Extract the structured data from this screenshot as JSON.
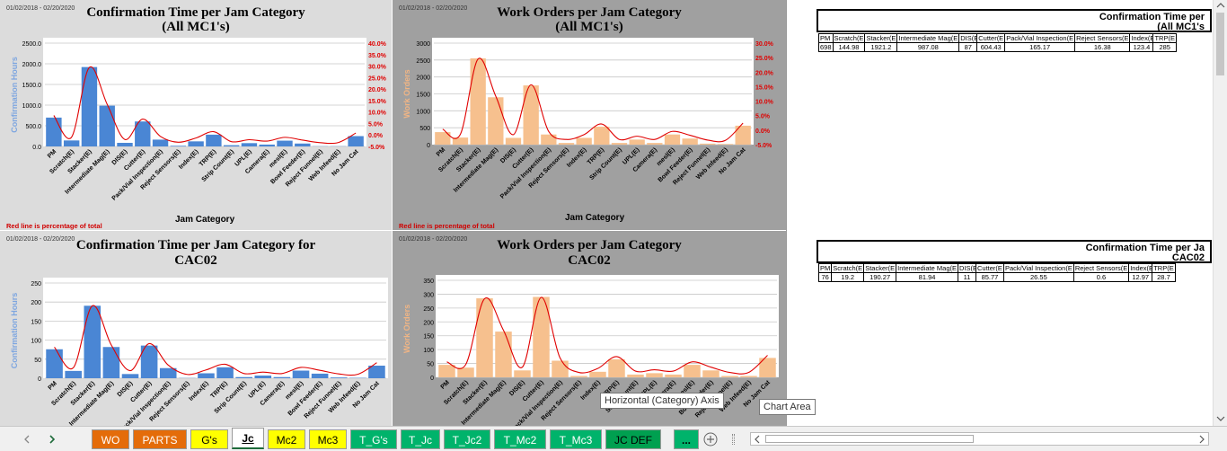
{
  "date_range": "01/02/2018 - 02/20/2020",
  "panel1": {
    "title_line1": "Confirmation Time per Jam Category",
    "title_line2": "(All MC1's)"
  },
  "panel2": {
    "title_line1": "Work Orders per Jam Category",
    "title_line2": "(All MC1's)"
  },
  "panel3": {
    "title_line1": "Confirmation Time per Jam Category for",
    "title_line2": "CAC02"
  },
  "panel4": {
    "title_line1": "Work Orders per Jam Category",
    "title_line2": "CAC02"
  },
  "red_note": "Red line is percentage of total",
  "x_axis_title": "Jam Category",
  "chart_data": [
    {
      "type": "bar",
      "title": "Confirmation Time per Jam Category (All MC1's)",
      "xlabel": "Jam Category",
      "ylabel": "Confirmation Hours",
      "ylim": [
        0,
        2500
      ],
      "y_ticks": [
        "0.0",
        "500.0",
        "1000.0",
        "1500.0",
        "2000.0",
        "2500.0"
      ],
      "y2lim": [
        -5,
        40
      ],
      "y2_ticks": [
        "-5.0%",
        "0.0%",
        "5.0%",
        "10.0%",
        "15.0%",
        "20.0%",
        "25.0%",
        "30.0%",
        "35.0%",
        "40.0%"
      ],
      "categories": [
        "PM",
        "Scratch(E)",
        "Stacker(E)",
        "Intermediate Mag(E)",
        "DIS(E)",
        "Cutter(E)",
        "Pack/Vial Inspection(E)",
        "Reject Sensors(E)",
        "Index(E)",
        "TRP(E)",
        "Strip Count(E)",
        "UPL(E)",
        "Camera(E)",
        "mesl(E)",
        "Bowl Feeder(E)",
        "Reject Funnel(E)",
        "Web Infeed(E)",
        "No Jam Cat"
      ],
      "values": [
        698,
        145,
        1921,
        987,
        87,
        604,
        165,
        16,
        123,
        285,
        30,
        80,
        45,
        140,
        70,
        5,
        5,
        250
      ],
      "bar_color": "#4a86d4",
      "line_color": "#e00000",
      "grid": true
    },
    {
      "type": "bar",
      "title": "Work Orders per Jam Category (All MC1's)",
      "xlabel": "Jam Category",
      "ylabel": "Work Orders",
      "ylim": [
        0,
        3000
      ],
      "y_ticks": [
        "0",
        "500",
        "1000",
        "1500",
        "2000",
        "2500",
        "3000"
      ],
      "y2lim": [
        -5,
        30
      ],
      "y2_ticks": [
        "-5.0%",
        "0.0%",
        "5.0%",
        "10.0%",
        "15.0%",
        "20.0%",
        "25.0%",
        "30.0%"
      ],
      "categories": [
        "PM",
        "Scratch(E)",
        "Stacker(E)",
        "Intermediate Mag(E)",
        "DIS(E)",
        "Cutter(E)",
        "Pack/Vial Inspection(E)",
        "Reject Sensors(E)",
        "Index(E)",
        "TRP(E)",
        "Strip Count(E)",
        "UPL(E)",
        "Camera(E)",
        "mesl(E)",
        "Bowl Feeder(E)",
        "Reject Funnel(E)",
        "Web Infeed(E)",
        "No Jam Cat"
      ],
      "values": [
        370,
        210,
        2550,
        1400,
        200,
        1750,
        300,
        50,
        200,
        530,
        50,
        150,
        50,
        300,
        180,
        30,
        20,
        560
      ],
      "bar_color": "#f6c08e",
      "line_color": "#e00000",
      "grid": true
    },
    {
      "type": "bar",
      "title": "Confirmation Time per Jam Category for CAC02",
      "ylabel": "Confirmation Hours",
      "ylim": [
        0,
        250
      ],
      "y_ticks": [
        "0",
        "50",
        "100",
        "150",
        "200",
        "250"
      ],
      "categories": [
        "PM",
        "Scratch(E)",
        "Stacker(E)",
        "Intermediate Mag(E)",
        "DIS(E)",
        "Cutter(E)",
        "Pack/Vial Inspection(E)",
        "Reject Sensors(E)",
        "Index(E)",
        "TRP(E)",
        "Strip Count(E)",
        "UPL(E)",
        "Camera(E)",
        "mesl(E)",
        "Bowl Feeder(E)",
        "Reject Funnel(E)",
        "Web Infeed(E)",
        "No Jam Cat"
      ],
      "values": [
        76,
        19.2,
        190.27,
        81.94,
        11,
        85.77,
        26.55,
        0.6,
        12.97,
        28.7,
        3,
        7,
        3,
        20,
        12,
        2,
        1,
        33
      ],
      "bar_color": "#4a86d4",
      "line_color": "#e00000",
      "grid": true
    },
    {
      "type": "bar",
      "title": "Work Orders per Jam Category CAC02",
      "ylabel": "Work Orders",
      "ylim": [
        0,
        350
      ],
      "y_ticks": [
        "0",
        "50",
        "100",
        "150",
        "200",
        "250",
        "300",
        "350"
      ],
      "categories": [
        "PM",
        "Scratch(E)",
        "Stacker(E)",
        "Intermediate Mag(E)",
        "DIS(E)",
        "Cutter(E)",
        "Pack/Vial Inspection(E)",
        "Reject Sensors(E)",
        "Index(E)",
        "TRP(E)",
        "Strip Count(E)",
        "UPL(E)",
        "Camera(E)",
        "mesl(E)",
        "Bowl Feeder(E)",
        "Reject Funnel(E)",
        "Web Infeed(E)",
        "No Jam Cat"
      ],
      "values": [
        45,
        35,
        285,
        165,
        25,
        290,
        60,
        5,
        20,
        65,
        10,
        15,
        10,
        45,
        25,
        5,
        5,
        70
      ],
      "bar_color": "#f6c08e",
      "line_color": "#e00000",
      "grid": true
    }
  ],
  "sheet_tables": [
    {
      "title": "Confirmation Time per",
      "subtitle": "(All MC1's",
      "headers": [
        "PM",
        "Scratch(E",
        "Stacker(E",
        "Intermediate Mag(E",
        "DIS(E",
        "Cutter(E",
        "Pack/Vial Inspection(E",
        "Reject Sensors(E",
        "Index(E",
        "TRP(E"
      ],
      "values": [
        "698",
        "144.98",
        "1921.2",
        "987.08",
        "87",
        "604.43",
        "165.17",
        "16.38",
        "123.4",
        "285"
      ]
    },
    {
      "title": "Confirmation Time per Ja",
      "subtitle": "CAC02",
      "headers": [
        "PM",
        "Scratch(E",
        "Stacker(E",
        "Intermediate Mag(E",
        "DIS(E",
        "Cutter(E",
        "Pack/Vial Inspection(E",
        "Reject Sensors(E",
        "Index(E",
        "TRP(E"
      ],
      "values": [
        "76",
        "19.2",
        "190.27",
        "81.94",
        "11",
        "85.77",
        "26.55",
        "0.6",
        "12.97",
        "28.7"
      ]
    }
  ],
  "tooltips": {
    "axis": "Horizontal (Category) Axis",
    "chart_area": "Chart Area"
  },
  "sheet_tabs": [
    {
      "label": "WO",
      "color": "#e46c0a",
      "text": "#ffffff"
    },
    {
      "label": "PARTS",
      "color": "#e46c0a",
      "text": "#ffffff"
    },
    {
      "label": "G's",
      "color": "#ffff00",
      "text": "#000000"
    },
    {
      "label": "Jc",
      "color": "#ffffff",
      "text": "#000000"
    },
    {
      "label": "Mc2",
      "color": "#ffff00",
      "text": "#000000"
    },
    {
      "label": "Mc3",
      "color": "#ffff00",
      "text": "#000000"
    },
    {
      "label": "T_G's",
      "color": "#00b36b",
      "text": "#ffffff"
    },
    {
      "label": "T_Jc",
      "color": "#00b36b",
      "text": "#ffffff"
    },
    {
      "label": "T_Jc2",
      "color": "#00b36b",
      "text": "#ffffff"
    },
    {
      "label": "T_Mc2",
      "color": "#00b36b",
      "text": "#ffffff"
    },
    {
      "label": "T_Mc3",
      "color": "#00b36b",
      "text": "#ffffff"
    },
    {
      "label": "JC DEF",
      "color": "#00a050",
      "text": "#000000"
    }
  ],
  "more_tabs_label": "..."
}
